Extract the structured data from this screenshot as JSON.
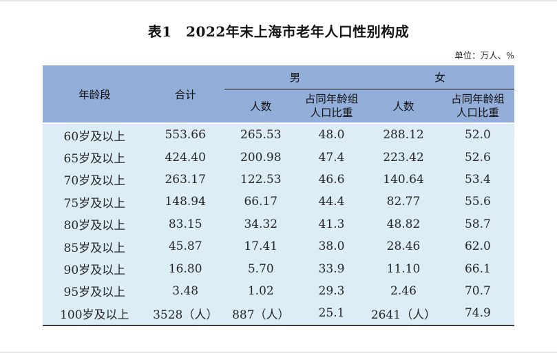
{
  "page": {
    "title": "表1　2022年末上海市老年人口性别构成",
    "unit_label": "单位：万人、%"
  },
  "table": {
    "headers": {
      "age_group": "年龄段",
      "total": "合计",
      "male": "男",
      "female": "女",
      "count": "人数",
      "share_line1": "占同年龄组",
      "share_line2": "人口比重"
    },
    "rows": [
      [
        "60岁及以上",
        "553.66",
        "265.53",
        "48.0",
        "288.12",
        "52.0"
      ],
      [
        "65岁及以上",
        "424.40",
        "200.98",
        "47.4",
        "223.42",
        "52.6"
      ],
      [
        "70岁及以上",
        "263.17",
        "122.53",
        "46.6",
        "140.64",
        "53.4"
      ],
      [
        "75岁及以上",
        "148.94",
        "66.17",
        "44.4",
        "82.77",
        "55.6"
      ],
      [
        "80岁及以上",
        "83.15",
        "34.32",
        "41.3",
        "48.82",
        "58.7"
      ],
      [
        "85岁及以上",
        "45.87",
        "17.41",
        "38.0",
        "28.46",
        "62.0"
      ],
      [
        "90岁及以上",
        "16.80",
        "5.70",
        "33.9",
        "11.10",
        "66.1"
      ],
      [
        "95岁及以上",
        "3.48",
        "1.02",
        "29.3",
        "2.46",
        "70.7"
      ],
      [
        "100岁及以上",
        "3528（人）",
        "887（人）",
        "25.1",
        "2641（人）",
        "74.9"
      ]
    ],
    "colors": {
      "header_bg": "#92aed9",
      "body_bg": "#dcedf6",
      "header_rule": "#1c1c1c",
      "table_bottom_border": "#3c3c3c",
      "page_edge": "#e6e6e6"
    }
  }
}
